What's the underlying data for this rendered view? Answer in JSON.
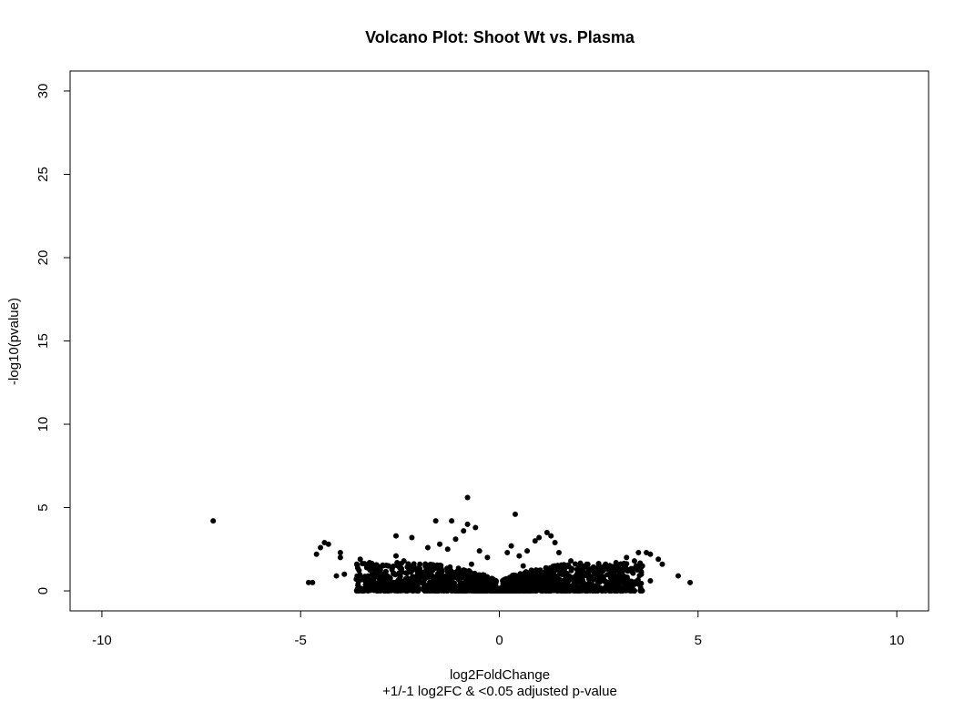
{
  "chart_data": {
    "type": "scatter",
    "title": "Volcano Plot: Shoot Wt vs. Plasma",
    "xlabel": "log2FoldChange",
    "xlabel_sub": "+1/-1 log2FC & <0.05 adjusted p-value",
    "ylabel": "-log10(pvalue)",
    "xlim": [
      -10.8,
      10.8
    ],
    "ylim": [
      -1.2,
      31.2
    ],
    "xticks": [
      -10,
      -5,
      0,
      5,
      10
    ],
    "yticks": [
      0,
      5,
      10,
      15,
      20,
      25,
      30
    ],
    "xtick_labels": [
      "-10",
      "-5",
      "0",
      "5",
      "10"
    ],
    "ytick_labels": [
      "0",
      "5",
      "10",
      "15",
      "20",
      "25",
      "30"
    ],
    "grid": false,
    "point_color": "#000000",
    "series": [
      {
        "points": [
          [
            -7.2,
            4.2
          ],
          [
            -0.8,
            5.6
          ],
          [
            0.4,
            4.6
          ],
          [
            -1.6,
            4.2
          ],
          [
            -1.2,
            4.2
          ],
          [
            -0.8,
            4.0
          ],
          [
            -0.6,
            3.8
          ],
          [
            -0.9,
            3.6
          ],
          [
            1.2,
            3.5
          ],
          [
            1.0,
            3.2
          ],
          [
            1.3,
            3.3
          ],
          [
            0.9,
            3.0
          ],
          [
            -2.6,
            3.3
          ],
          [
            -2.2,
            3.2
          ],
          [
            -4.4,
            2.9
          ],
          [
            -4.3,
            2.8
          ],
          [
            -4.5,
            2.6
          ],
          [
            -4.6,
            2.2
          ],
          [
            -4.0,
            2.3
          ],
          [
            -4.0,
            2.0
          ],
          [
            -4.8,
            0.5
          ],
          [
            -4.7,
            0.5
          ],
          [
            -4.1,
            0.9
          ],
          [
            -3.9,
            1.0
          ],
          [
            4.5,
            0.9
          ],
          [
            4.8,
            0.5
          ],
          [
            4.0,
            1.9
          ],
          [
            3.8,
            2.2
          ],
          [
            3.7,
            2.3
          ],
          [
            3.5,
            2.3
          ],
          [
            3.2,
            2.0
          ],
          [
            3.4,
            1.8
          ],
          [
            3.6,
            1.5
          ],
          [
            3.1,
            1.2
          ],
          [
            3.8,
            0.6
          ],
          [
            3.5,
            0.4
          ],
          [
            2.8,
            1.4
          ],
          [
            2.6,
            1.2
          ],
          [
            2.4,
            1.0
          ],
          [
            2.2,
            1.6
          ],
          [
            2.0,
            1.4
          ],
          [
            1.8,
            1.8
          ],
          [
            -3.5,
            1.9
          ],
          [
            -3.2,
            1.6
          ],
          [
            -3.0,
            1.3
          ],
          [
            -2.8,
            1.5
          ],
          [
            -2.6,
            2.1
          ],
          [
            -2.4,
            1.8
          ],
          [
            -2.2,
            1.2
          ],
          [
            -2.0,
            1.6
          ],
          [
            -1.8,
            2.6
          ],
          [
            -1.5,
            2.8
          ],
          [
            -1.3,
            2.5
          ],
          [
            -1.1,
            3.1
          ],
          [
            -0.5,
            2.4
          ],
          [
            -0.3,
            2.0
          ],
          [
            0.2,
            2.3
          ],
          [
            0.3,
            2.7
          ],
          [
            0.5,
            2.1
          ],
          [
            0.7,
            2.4
          ],
          [
            1.5,
            2.3
          ],
          [
            1.4,
            2.9
          ],
          [
            0.6,
            1.5
          ],
          [
            -0.7,
            1.6
          ],
          [
            -3.6,
            0.7
          ],
          [
            -3.3,
            0.9
          ],
          [
            -2.9,
            0.6
          ],
          [
            3.0,
            0.8
          ],
          [
            2.7,
            0.5
          ],
          [
            4.1,
            1.6
          ]
        ]
      }
    ]
  }
}
